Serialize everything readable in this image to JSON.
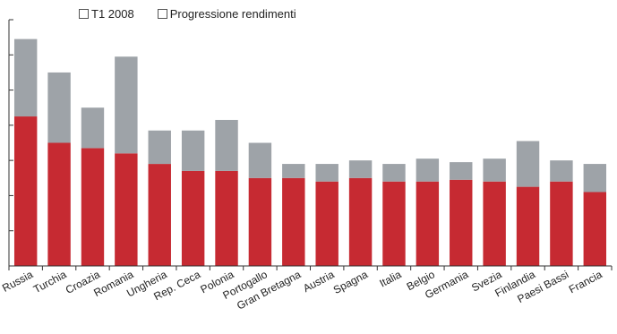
{
  "chart_data": {
    "type": "bar",
    "stacked": true,
    "categories": [
      "Russia",
      "Turchia",
      "Croazia",
      "Romania",
      "Ungheria",
      "Rep. Ceca",
      "Polonia",
      "Portogallo",
      "Gran Bretagna",
      "Austria",
      "Spagna",
      "Italia",
      "Belgio",
      "Germania",
      "Svezia",
      "Finlandia",
      "Paesi Bassi",
      "Francia"
    ],
    "series": [
      {
        "name": "T1 2008",
        "color": "#c62a32",
        "values": [
          8.5,
          7.0,
          6.7,
          6.4,
          5.8,
          5.4,
          5.4,
          5.0,
          5.0,
          4.8,
          5.0,
          4.8,
          4.8,
          4.9,
          4.8,
          4.5,
          4.8,
          4.2
        ]
      },
      {
        "name": "Progressione rendimenti",
        "color": "#9ea3a8",
        "values": [
          4.4,
          4.0,
          2.3,
          5.5,
          1.9,
          2.3,
          2.9,
          2.0,
          0.8,
          1.0,
          1.0,
          1.0,
          1.3,
          1.0,
          1.3,
          2.6,
          1.2,
          1.6
        ]
      }
    ],
    "ylim": [
      0,
      14
    ],
    "ytick_step": 2,
    "title": "",
    "xlabel": "",
    "ylabel": "",
    "grid": false,
    "legend": "top-left"
  },
  "legend": {
    "items": [
      {
        "label": "T1 2008"
      },
      {
        "label": "Progressione rendimenti"
      }
    ]
  }
}
